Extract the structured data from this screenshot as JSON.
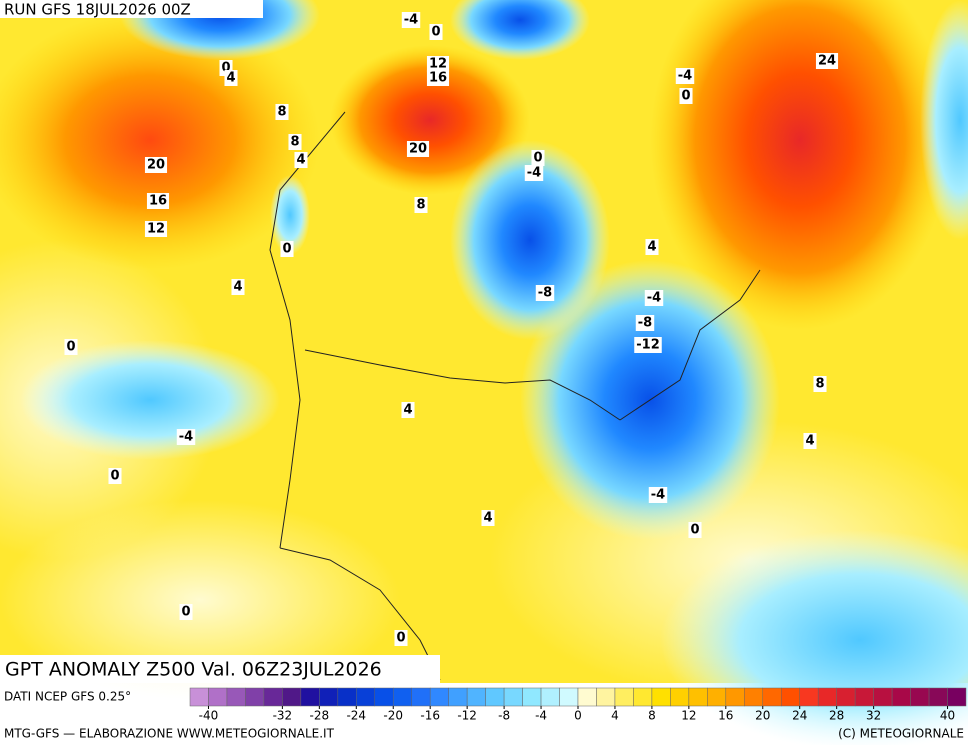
{
  "header": {
    "run": "RUN GFS 18JUL2026 00Z",
    "title": "GPT ANOMALY Z500 Val. 06Z23JUL2026"
  },
  "map": {
    "contour_labels": [
      "-4",
      "0",
      "0",
      "4",
      "12",
      "16",
      "-4",
      "0",
      "24",
      "8",
      "8",
      "4",
      "20",
      "20",
      "16",
      "12",
      "8",
      "0",
      "-4",
      "0",
      "4",
      "4",
      "-8",
      "-4",
      "-8",
      "-12",
      "0",
      "8",
      "4",
      "-4",
      "4",
      "0",
      "-4",
      "4",
      "0",
      "0",
      "0"
    ]
  },
  "colorbar": {
    "source": "DATI NCEP GFS 0.25°",
    "range": [
      -42,
      42
    ],
    "colors": [
      "#c890d8",
      "#b070c8",
      "#9858b8",
      "#8040a8",
      "#682898",
      "#501888",
      "#2010a0",
      "#1020b8",
      "#0830c8",
      "#0840d8",
      "#0850e8",
      "#1060f0",
      "#2070f8",
      "#3088ff",
      "#40a0ff",
      "#50b4ff",
      "#60c8ff",
      "#78d8ff",
      "#90e8ff",
      "#b0f0ff",
      "#d0faff",
      "#fffbd0",
      "#fff4a0",
      "#ffee60",
      "#ffe830",
      "#ffe000",
      "#ffd000",
      "#ffc000",
      "#ffb000",
      "#ff9800",
      "#ff8000",
      "#ff6800",
      "#ff5000",
      "#f83820",
      "#e82828",
      "#d82030",
      "#c81838",
      "#b81040",
      "#a80848",
      "#980850",
      "#880858",
      "#780060"
    ],
    "ticks": [
      -40,
      -32,
      -28,
      -24,
      -20,
      -16,
      -12,
      -8,
      -4,
      0,
      4,
      8,
      12,
      16,
      20,
      24,
      28,
      32,
      40
    ]
  },
  "footer": {
    "left": "MTG-GFS — ELABORAZIONE WWW.METEOGIORNALE.IT",
    "right": "(C) METEOGIORNALE"
  }
}
